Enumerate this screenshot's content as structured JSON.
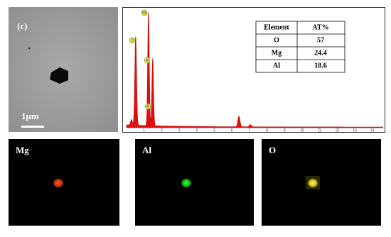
{
  "panel_label": "(c)",
  "scale_bar": "1μm",
  "table": {
    "header": [
      "Element",
      "AT%"
    ],
    "rows": [
      [
        "O",
        "57"
      ],
      [
        "Mg",
        "24.4"
      ],
      [
        "Al",
        "18.6"
      ]
    ]
  },
  "spectrum": {
    "peak_labels": [
      "O",
      "Mg",
      "Al",
      "Al"
    ],
    "x_ticks": [
      1,
      2,
      3,
      4,
      5,
      6,
      7,
      8,
      9,
      10,
      11,
      12,
      13,
      14
    ]
  },
  "maps": [
    "Mg",
    "Al",
    "O"
  ]
}
